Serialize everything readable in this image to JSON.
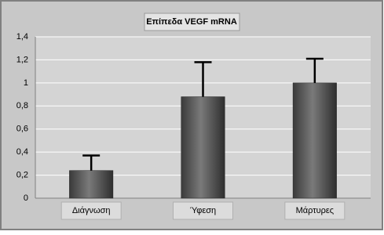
{
  "chart_data": {
    "type": "bar",
    "title": "Επίπεδα VEGF mRNA",
    "categories": [
      "Διάγνωση",
      "Ύφεση",
      "Μάρτυρες"
    ],
    "values": [
      0.24,
      0.88,
      1.0
    ],
    "errors": [
      0.13,
      0.3,
      0.21
    ],
    "color": "#555555",
    "ylim": [
      0,
      1.4
    ],
    "yticks": [
      0,
      {
        "value": 0.2,
        "label": "0,2"
      },
      {
        "value": 0.4,
        "label": "0,4"
      },
      {
        "value": 0.6,
        "label": "0,6"
      },
      {
        "value": 0.8,
        "label": "0,8"
      },
      1,
      {
        "value": 1.2,
        "label": "1,2"
      },
      {
        "value": 1.4,
        "label": "1,4"
      }
    ],
    "grid": true
  }
}
